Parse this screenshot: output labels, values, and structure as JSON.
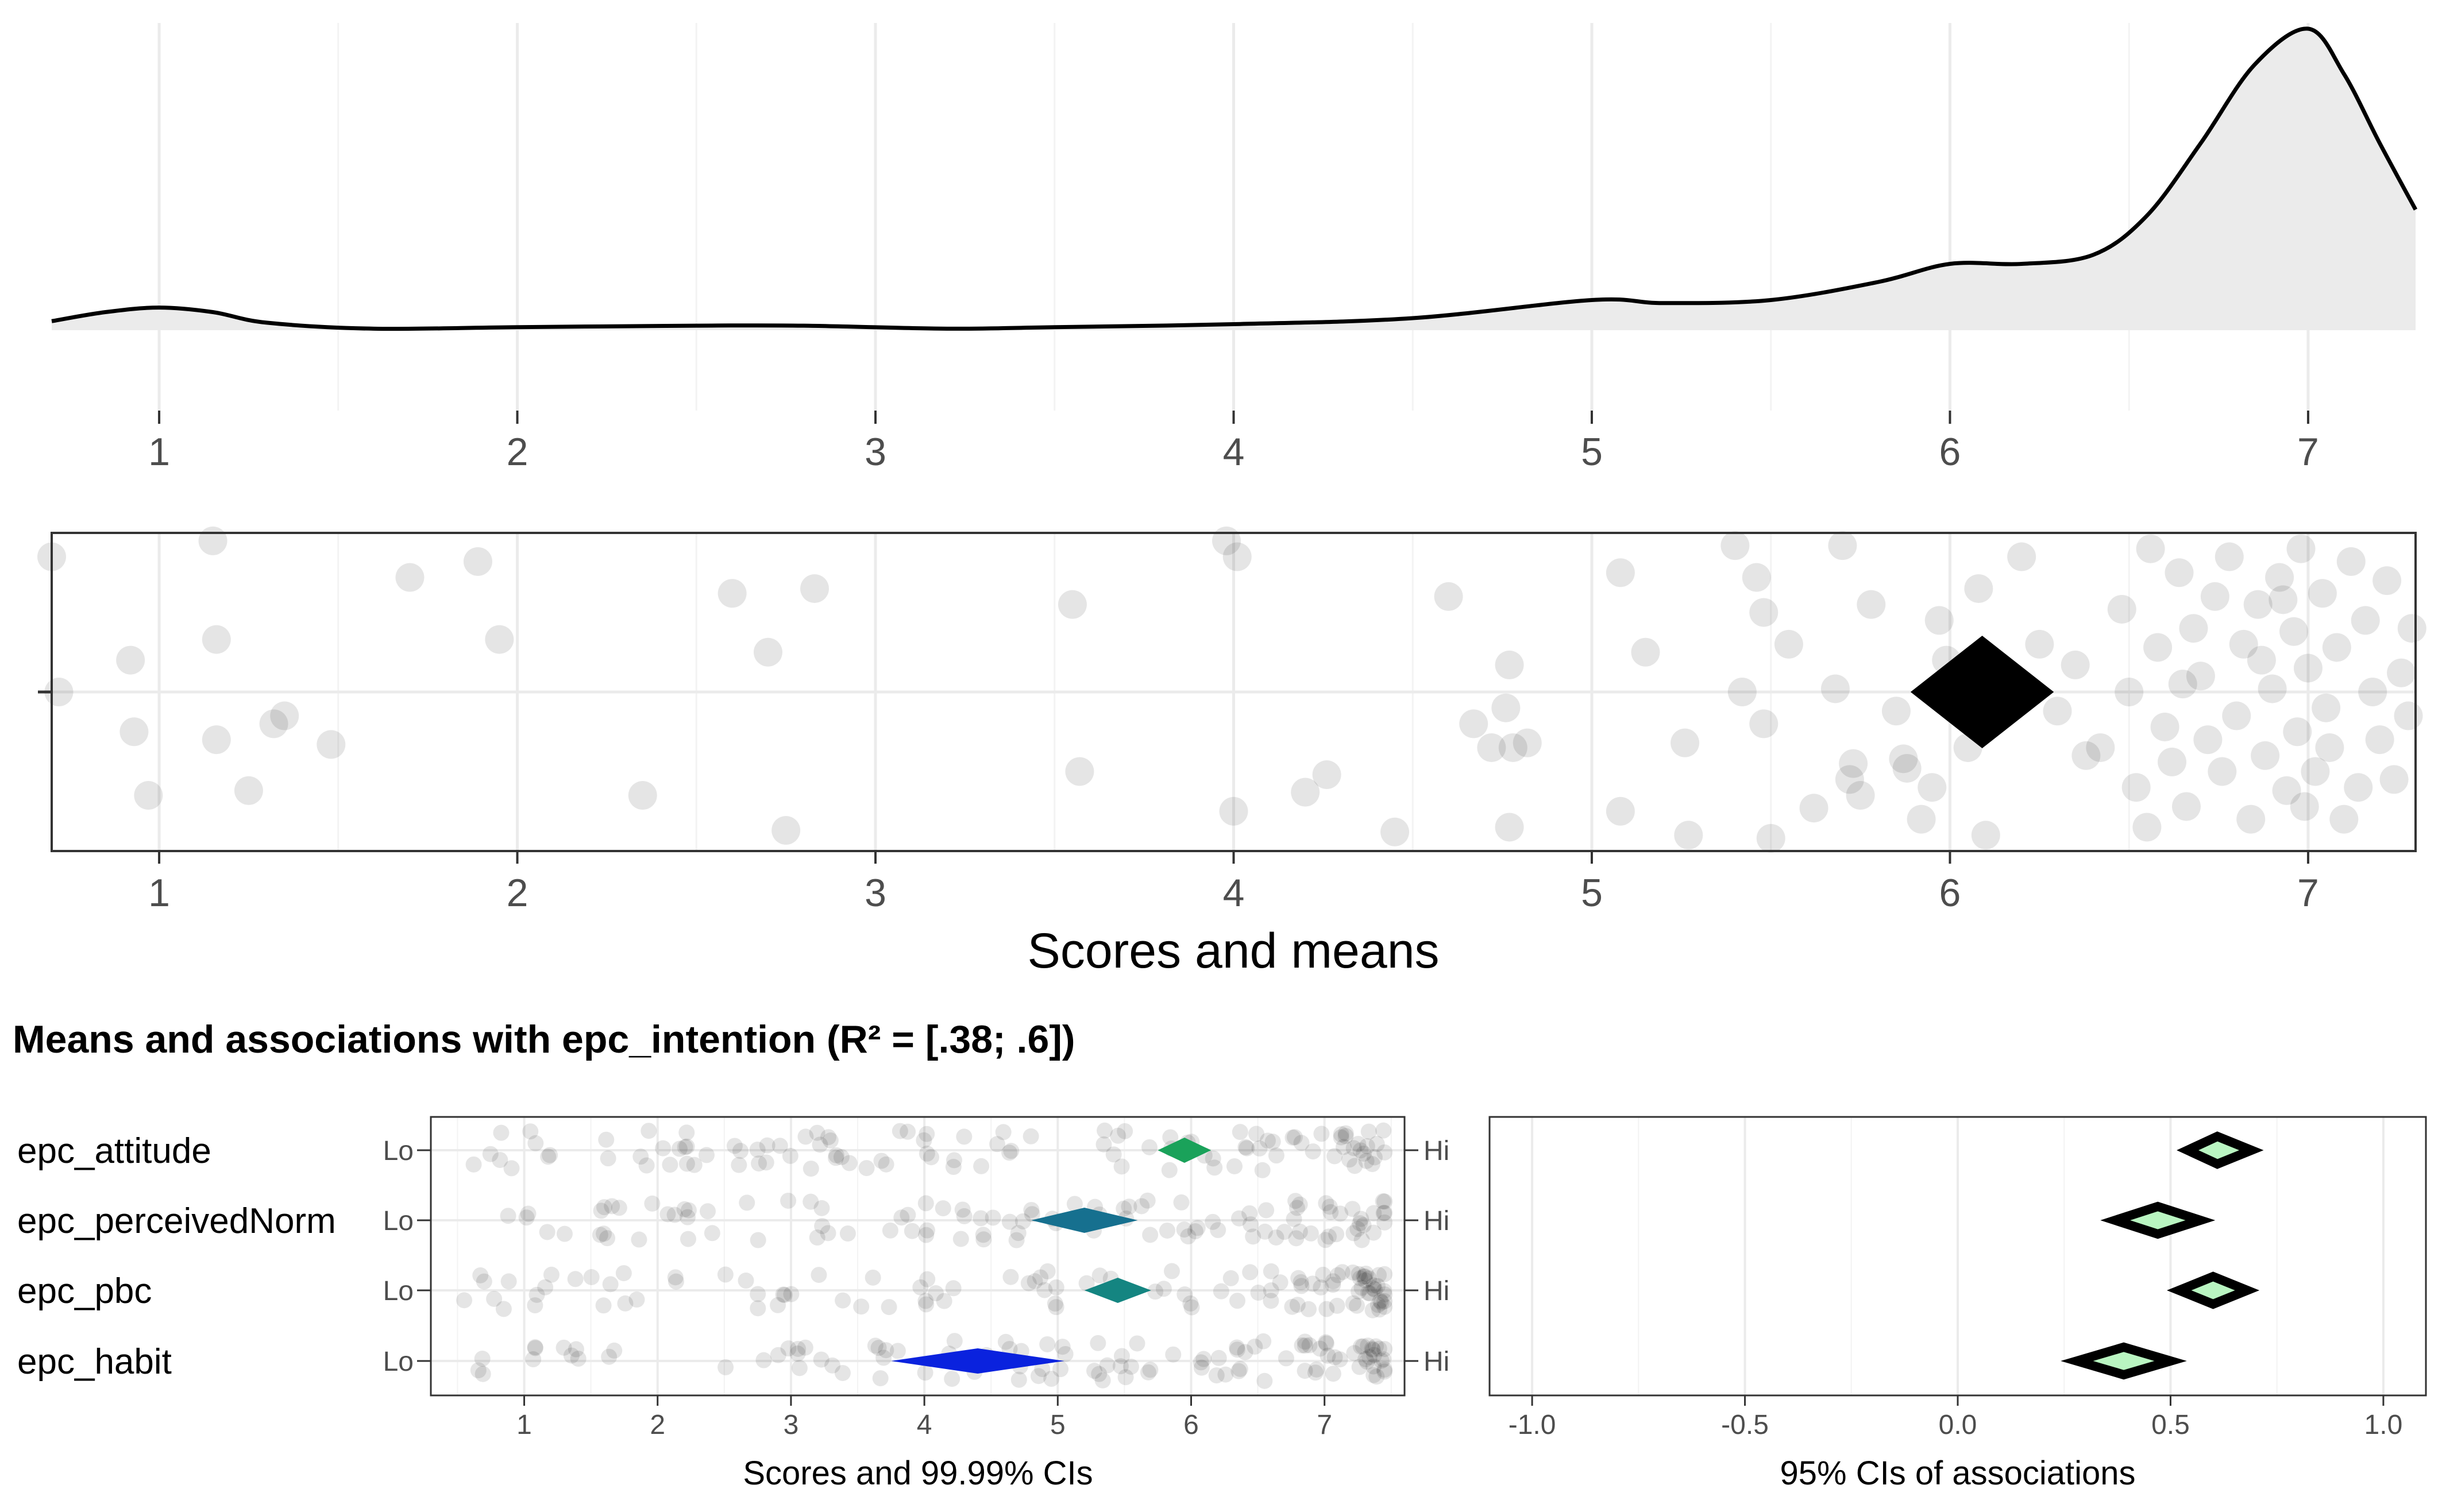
{
  "chart_data": [
    {
      "type": "area",
      "name": "density",
      "x_ticks": [
        "1",
        "2",
        "3",
        "4",
        "5",
        "6",
        "7"
      ],
      "xlim": [
        0.7,
        7.3
      ],
      "x": [
        0.7,
        0.85,
        1.0,
        1.15,
        1.3,
        1.6,
        2.0,
        2.5,
        2.8,
        3.2,
        3.5,
        4.0,
        4.5,
        5.0,
        5.2,
        5.5,
        5.8,
        6.0,
        6.2,
        6.4,
        6.55,
        6.7,
        6.85,
        7.0,
        7.1,
        7.2,
        7.3
      ],
      "y": [
        0.03,
        0.06,
        0.075,
        0.06,
        0.025,
        0.005,
        0.01,
        0.015,
        0.015,
        0.005,
        0.01,
        0.02,
        0.04,
        0.1,
        0.09,
        0.1,
        0.16,
        0.22,
        0.22,
        0.25,
        0.38,
        0.62,
        0.88,
        1.0,
        0.85,
        0.62,
        0.4
      ],
      "ylim": [
        0,
        1.0
      ],
      "grid": true
    },
    {
      "type": "scatter",
      "name": "scores_and_means",
      "xlabel": "Scores and means",
      "x_ticks": [
        "1",
        "2",
        "3",
        "4",
        "5",
        "6",
        "7"
      ],
      "xlim": [
        0.7,
        7.3
      ],
      "ylim": [
        -1,
        1
      ],
      "mean": 6.09,
      "mean_ci_width": 0.2,
      "points": [
        [
          0.7,
          0.85
        ],
        [
          0.72,
          0.0
        ],
        [
          0.92,
          0.2
        ],
        [
          0.93,
          -0.25
        ],
        [
          0.97,
          -0.65
        ],
        [
          1.15,
          0.95
        ],
        [
          1.16,
          0.33
        ],
        [
          1.16,
          -0.3
        ],
        [
          1.25,
          -0.62
        ],
        [
          1.32,
          -0.2
        ],
        [
          1.35,
          -0.15
        ],
        [
          1.48,
          -0.33
        ],
        [
          1.7,
          0.72
        ],
        [
          1.89,
          0.82
        ],
        [
          1.95,
          0.33
        ],
        [
          2.35,
          -0.65
        ],
        [
          2.6,
          0.62
        ],
        [
          2.7,
          0.25
        ],
        [
          2.75,
          -0.87
        ],
        [
          2.83,
          0.65
        ],
        [
          3.55,
          0.55
        ],
        [
          3.57,
          -0.5
        ],
        [
          3.98,
          0.95
        ],
        [
          4.0,
          -0.75
        ],
        [
          4.01,
          0.85
        ],
        [
          4.2,
          -0.63
        ],
        [
          4.26,
          -0.52
        ],
        [
          4.45,
          -0.88
        ],
        [
          4.6,
          0.6
        ],
        [
          4.67,
          -0.2
        ],
        [
          4.72,
          -0.35
        ],
        [
          4.76,
          -0.1
        ],
        [
          4.77,
          0.17
        ],
        [
          4.78,
          -0.35
        ],
        [
          4.82,
          -0.32
        ],
        [
          4.77,
          -0.85
        ],
        [
          5.08,
          0.75
        ],
        [
          5.08,
          -0.75
        ],
        [
          5.15,
          0.25
        ],
        [
          5.26,
          -0.32
        ],
        [
          5.27,
          -0.9
        ],
        [
          5.4,
          0.92
        ],
        [
          5.42,
          0.0
        ],
        [
          5.46,
          0.72
        ],
        [
          5.48,
          0.5
        ],
        [
          5.48,
          -0.2
        ],
        [
          5.5,
          -0.92
        ],
        [
          5.55,
          0.3
        ],
        [
          5.62,
          -0.73
        ],
        [
          5.68,
          0.02
        ],
        [
          5.7,
          0.92
        ],
        [
          5.72,
          -0.55
        ],
        [
          5.73,
          -0.45
        ],
        [
          5.75,
          -0.65
        ],
        [
          5.78,
          0.55
        ],
        [
          5.85,
          -0.12
        ],
        [
          5.87,
          -0.42
        ],
        [
          5.88,
          -0.48
        ],
        [
          5.92,
          -0.8
        ],
        [
          5.95,
          -0.6
        ],
        [
          5.97,
          0.45
        ],
        [
          5.99,
          0.2
        ],
        [
          6.05,
          0.1
        ],
        [
          6.05,
          -0.35
        ],
        [
          6.08,
          0.65
        ],
        [
          6.1,
          -0.9
        ],
        [
          6.2,
          0.85
        ],
        [
          6.25,
          0.3
        ],
        [
          6.3,
          -0.12
        ],
        [
          6.35,
          0.17
        ],
        [
          6.38,
          -0.4
        ],
        [
          6.42,
          -0.35
        ],
        [
          6.48,
          0.52
        ],
        [
          6.5,
          0.0
        ],
        [
          6.52,
          -0.6
        ],
        [
          6.55,
          -0.85
        ],
        [
          6.56,
          0.9
        ],
        [
          6.58,
          0.28
        ],
        [
          6.6,
          -0.22
        ],
        [
          6.62,
          -0.44
        ],
        [
          6.64,
          0.75
        ],
        [
          6.66,
          -0.72
        ],
        [
          6.68,
          0.4
        ],
        [
          6.7,
          0.1
        ],
        [
          6.72,
          -0.3
        ],
        [
          6.74,
          0.6
        ],
        [
          6.76,
          -0.5
        ],
        [
          6.78,
          0.85
        ],
        [
          6.8,
          -0.15
        ],
        [
          6.82,
          0.3
        ],
        [
          6.84,
          -0.8
        ],
        [
          6.86,
          0.55
        ],
        [
          6.88,
          -0.4
        ],
        [
          6.9,
          0.02
        ],
        [
          6.92,
          0.72
        ],
        [
          6.94,
          -0.62
        ],
        [
          6.96,
          0.38
        ],
        [
          6.97,
          -0.25
        ],
        [
          6.98,
          0.9
        ],
        [
          7.0,
          0.15
        ],
        [
          7.02,
          -0.5
        ],
        [
          7.04,
          0.62
        ],
        [
          7.05,
          -0.1
        ],
        [
          7.06,
          -0.35
        ],
        [
          7.08,
          0.28
        ],
        [
          7.1,
          -0.8
        ],
        [
          7.12,
          0.82
        ],
        [
          7.14,
          -0.6
        ],
        [
          7.16,
          0.45
        ],
        [
          7.18,
          0.0
        ],
        [
          7.2,
          -0.3
        ],
        [
          7.22,
          0.7
        ],
        [
          7.24,
          -0.55
        ],
        [
          7.26,
          0.12
        ],
        [
          7.28,
          -0.15
        ],
        [
          7.29,
          0.4
        ],
        [
          6.93,
          0.58
        ],
        [
          6.99,
          -0.72
        ],
        [
          6.65,
          0.05
        ],
        [
          6.87,
          0.2
        ]
      ],
      "grid": true
    },
    {
      "type": "scatter",
      "name": "diamond_plot_means",
      "title": "Means and associations with epc_intention (R² = [.38; .6])",
      "xlabel": "Scores and 99.99% CIs",
      "x_ticks": [
        "1",
        "2",
        "3",
        "4",
        "5",
        "6",
        "7"
      ],
      "xlim": [
        0.3,
        7.6
      ],
      "categories": [
        "epc_attitude",
        "epc_perceivedNorm",
        "epc_pbc",
        "epc_habit"
      ],
      "left_anchor": "Lo",
      "right_anchor": "Hi",
      "series": [
        {
          "name": "epc_attitude",
          "ci_lower": 5.75,
          "mean": 5.95,
          "ci_upper": 6.15,
          "color": "#1aa25a"
        },
        {
          "name": "epc_perceivedNorm",
          "ci_lower": 4.8,
          "mean": 5.2,
          "ci_upper": 5.6,
          "color": "#16708f"
        },
        {
          "name": "epc_pbc",
          "ci_lower": 5.2,
          "mean": 5.45,
          "ci_upper": 5.7,
          "color": "#148581"
        },
        {
          "name": "epc_habit",
          "ci_lower": 3.75,
          "mean": 4.4,
          "ci_upper": 5.05,
          "color": "#0a22de"
        }
      ],
      "grid": true
    },
    {
      "type": "scatter",
      "name": "associations",
      "xlabel": "95% CIs of associations",
      "x_ticks": [
        "-1.0",
        "-0.5",
        "0.0",
        "0.5",
        "1.0"
      ],
      "xlim": [
        -1.1,
        1.1
      ],
      "series": [
        {
          "name": "epc_attitude",
          "ci_lower": 0.54,
          "estimate": 0.61,
          "ci_upper": 0.69
        },
        {
          "name": "epc_perceivedNorm",
          "ci_lower": 0.37,
          "estimate": 0.47,
          "ci_upper": 0.57
        },
        {
          "name": "epc_pbc",
          "ci_lower": 0.52,
          "estimate": 0.6,
          "ci_upper": 0.68
        },
        {
          "name": "epc_habit",
          "ci_lower": 0.28,
          "estimate": 0.39,
          "ci_upper": 0.5
        }
      ],
      "fill_color": "#b9f5c1",
      "grid": true
    }
  ]
}
